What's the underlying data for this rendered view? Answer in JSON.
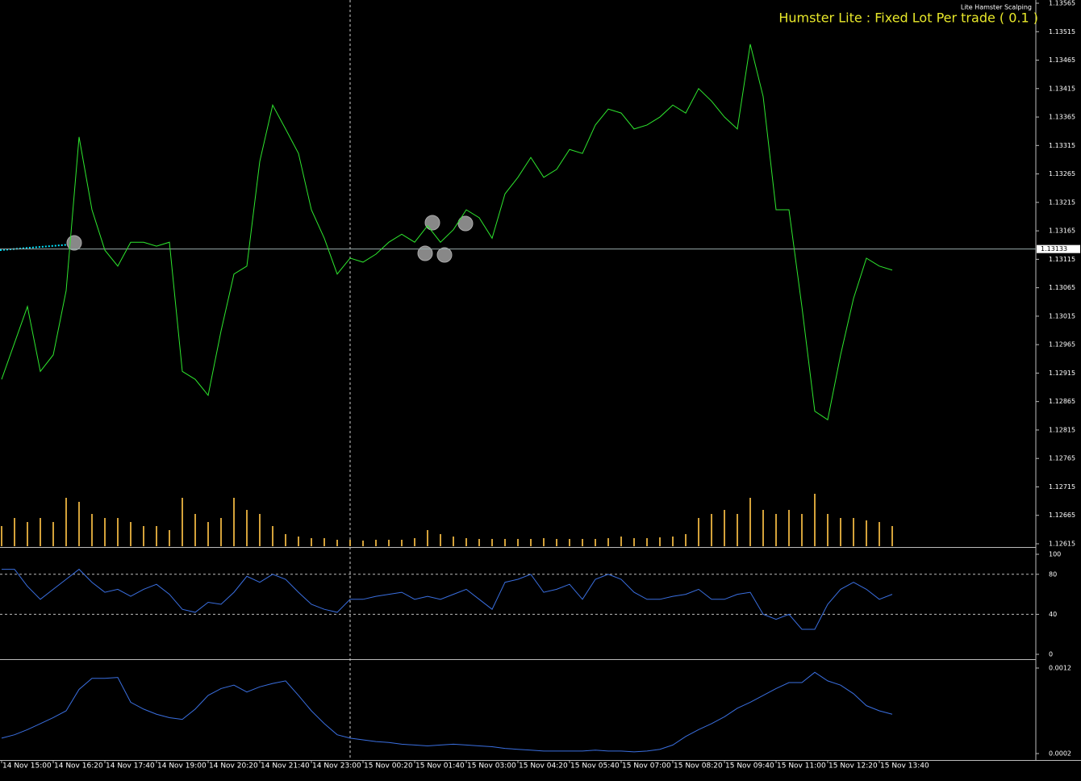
{
  "chart_data": [
    {
      "type": "line",
      "name": "price",
      "color": "#2ee62e",
      "annotations": [
        "Lite Hamster Scalping",
        "Humster Lite : Fixed Lot Per trade ( 0.1 )"
      ],
      "categories": [
        "14 Nov 15:00",
        null,
        null,
        null,
        "14 Nov 16:20",
        null,
        null,
        null,
        "14 Nov 17:40",
        null,
        null,
        null,
        "14 Nov 19:00",
        null,
        null,
        null,
        "14 Nov 20:20",
        null,
        null,
        null,
        "14 Nov 21:40",
        null,
        null,
        null,
        "14 Nov 23:00",
        null,
        null,
        null,
        "15 Nov 00:20",
        null,
        null,
        null,
        "15 Nov 01:40",
        null,
        null,
        null,
        "15 Nov 03:00",
        null,
        null,
        null,
        "15 Nov 04:20",
        null,
        null,
        null,
        "15 Nov 05:40",
        null,
        null,
        null,
        "15 Nov 07:00",
        null,
        null,
        null,
        "15 Nov 08:20",
        null,
        null,
        null,
        "15 Nov 09:40",
        null,
        null,
        null,
        "15 Nov 11:00",
        null,
        null,
        null,
        "15 Nov 12:20",
        null,
        null,
        null,
        "15 Nov 13:40",
        null
      ],
      "values": [
        1.12904,
        1.12968,
        1.13032,
        1.12918,
        1.12947,
        1.1306,
        1.1333,
        1.13202,
        1.13131,
        1.13103,
        1.13145,
        1.13145,
        1.13138,
        1.13145,
        1.12918,
        1.12904,
        1.12876,
        1.12989,
        1.13089,
        1.13103,
        1.13287,
        1.13386,
        1.13344,
        1.13301,
        1.13202,
        1.13152,
        1.13089,
        1.13117,
        1.1311,
        1.13124,
        1.13145,
        1.13159,
        1.13145,
        1.13174,
        1.13145,
        1.13167,
        1.13202,
        1.13188,
        1.13152,
        1.1323,
        1.13259,
        1.13294,
        1.13259,
        1.13273,
        1.13308,
        1.13301,
        1.13351,
        1.13379,
        1.13372,
        1.13344,
        1.13351,
        1.13365,
        1.13386,
        1.13372,
        1.13415,
        1.13393,
        1.13365,
        1.13344,
        1.13493,
        1.13401,
        1.13202,
        1.13202,
        1.13032,
        1.12848,
        1.12833,
        1.12947,
        1.13046,
        1.13117,
        1.13103,
        1.13096
      ],
      "current_price": 1.13133,
      "ylim": [
        1.12615,
        1.13565
      ],
      "yticks": [
        1.13565,
        1.13515,
        1.13465,
        1.13415,
        1.13365,
        1.13315,
        1.13265,
        1.13215,
        1.13165,
        1.13115,
        1.13065,
        1.13015,
        1.12965,
        1.12915,
        1.12865,
        1.12815,
        1.12765,
        1.12715,
        1.12665,
        1.12615
      ]
    },
    {
      "type": "bar",
      "name": "volume",
      "color": "#d4a23a",
      "ylim": [
        0,
        100
      ],
      "values": [
        25,
        35,
        30,
        35,
        30,
        60,
        55,
        40,
        35,
        35,
        30,
        25,
        25,
        20,
        60,
        40,
        30,
        35,
        60,
        45,
        40,
        25,
        15,
        12,
        10,
        10,
        8,
        8,
        7,
        8,
        8,
        8,
        10,
        20,
        15,
        12,
        10,
        9,
        9,
        9,
        9,
        9,
        10,
        9,
        9,
        9,
        9,
        10,
        12,
        10,
        10,
        11,
        12,
        15,
        35,
        40,
        45,
        40,
        60,
        45,
        40,
        45,
        40,
        65,
        40,
        35,
        35,
        32,
        30,
        25
      ]
    },
    {
      "type": "line",
      "name": "oscillator",
      "color": "#3a6fe0",
      "ylim": [
        0,
        100
      ],
      "yticks": [
        100,
        80,
        40,
        0
      ],
      "levels": [
        80,
        40
      ],
      "values": [
        85,
        85,
        68,
        55,
        65,
        75,
        85,
        72,
        62,
        65,
        58,
        65,
        70,
        60,
        45,
        42,
        52,
        50,
        62,
        78,
        72,
        80,
        75,
        62,
        50,
        45,
        42,
        55,
        55,
        58,
        60,
        62,
        55,
        58,
        55,
        60,
        65,
        55,
        45,
        72,
        75,
        80,
        62,
        65,
        70,
        55,
        75,
        80,
        75,
        62,
        55,
        55,
        58,
        60,
        65,
        55,
        55,
        60,
        62,
        40,
        35,
        40,
        25,
        25,
        50,
        65,
        72,
        65,
        55,
        60
      ]
    },
    {
      "type": "line",
      "name": "atr",
      "color": "#3a6fe0",
      "ylim": [
        0.0002,
        0.0012
      ],
      "yticks": [
        0.0012,
        0.0002
      ],
      "values": [
        0.00038,
        0.00042,
        0.00048,
        0.00055,
        0.00062,
        0.0007,
        0.00095,
        0.00108,
        0.00108,
        0.00109,
        0.0008,
        0.00072,
        0.00066,
        0.00062,
        0.0006,
        0.00072,
        0.00088,
        0.00096,
        0.001,
        0.00092,
        0.00098,
        0.00102,
        0.00105,
        0.00088,
        0.0007,
        0.00055,
        0.00042,
        0.00038,
        0.00036,
        0.00034,
        0.00033,
        0.00031,
        0.0003,
        0.00029,
        0.0003,
        0.00031,
        0.0003,
        0.00029,
        0.00028,
        0.00026,
        0.00025,
        0.00024,
        0.00023,
        0.00023,
        0.00023,
        0.00023,
        0.00024,
        0.00023,
        0.00023,
        0.00022,
        0.00023,
        0.00025,
        0.0003,
        0.0004,
        0.00048,
        0.00055,
        0.00063,
        0.00073,
        0.0008,
        0.00088,
        0.00096,
        0.00103,
        0.00103,
        0.00115,
        0.00105,
        0.001,
        0.0009,
        0.00076,
        0.0007,
        0.00066
      ]
    }
  ]
}
